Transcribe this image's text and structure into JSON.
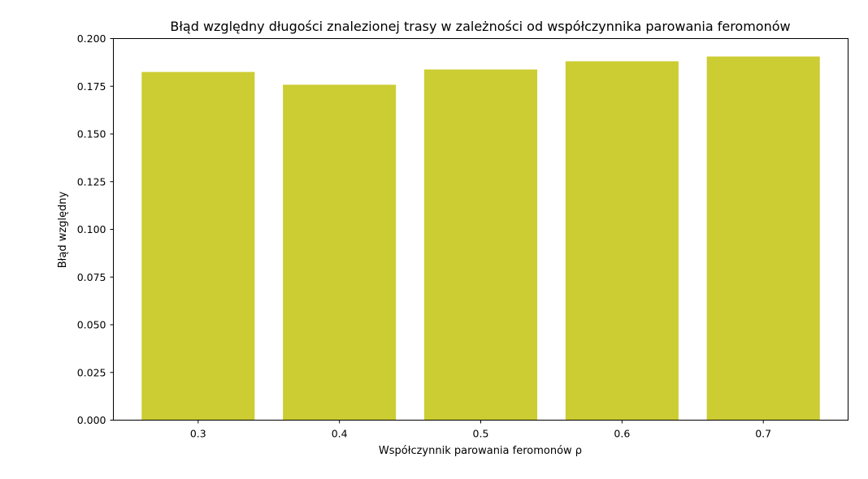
{
  "chart_data": {
    "type": "bar",
    "title": "Błąd względny długości znalezionej trasy w zależności od współczynnika parowania feromonów",
    "xlabel": "Współczynnik parowania feromonów ρ",
    "ylabel": "Błąd względny",
    "categories": [
      "0.3",
      "0.4",
      "0.5",
      "0.6",
      "0.7"
    ],
    "values": [
      0.1825,
      0.1758,
      0.1838,
      0.1881,
      0.1906
    ],
    "ylim": [
      0,
      0.2
    ],
    "yticks": [
      "0.000",
      "0.025",
      "0.050",
      "0.075",
      "0.100",
      "0.125",
      "0.150",
      "0.175",
      "0.200"
    ],
    "bar_color": "#cccc33",
    "grid": false,
    "legend": "none"
  }
}
